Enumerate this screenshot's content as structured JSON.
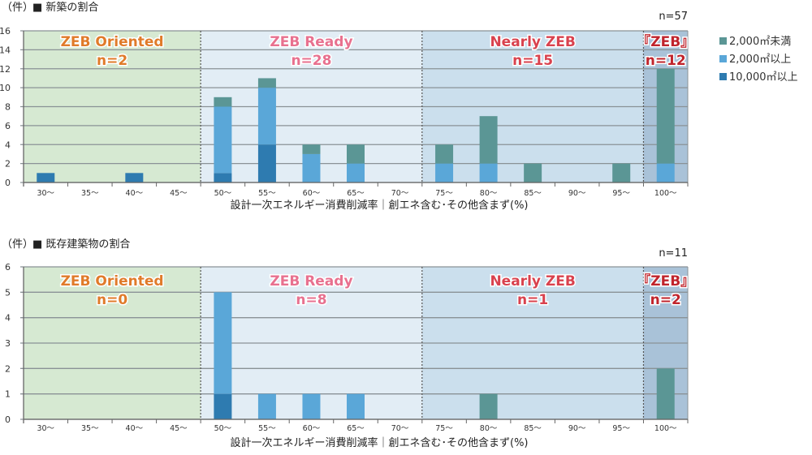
{
  "colors": {
    "small": "#5b9695",
    "mid": "#5aa7d8",
    "large": "#2e7bb0",
    "region_bg": [
      "#d6e9d2",
      "#e2edf5",
      "#cbdfed",
      "#a9c2d8"
    ],
    "region_text": [
      "#e07b2a",
      "#e8718f",
      "#d9424e",
      "#c0242c"
    ]
  },
  "legend": [
    "2,000㎡未満",
    "2,000㎡以上",
    "10,000㎡以上"
  ],
  "chart_data": [
    {
      "type": "bar",
      "stacked": true,
      "title": "■ 新築の割合",
      "ylabel": "（件）",
      "total_label": "n=57",
      "xlabel": "設計一次エネルギー消費削減率｜創エネ含む･その他含まず(%)",
      "ylim": [
        0,
        16
      ],
      "yticks": [
        0,
        2,
        4,
        6,
        8,
        10,
        12,
        14,
        16
      ],
      "grid": true,
      "legend_position": "right",
      "categories": [
        "30～",
        "35～",
        "40～",
        "45～",
        "50～",
        "55～",
        "60～",
        "65～",
        "70～",
        "75～",
        "80～",
        "85～",
        "90～",
        "95～",
        "100～"
      ],
      "series": [
        {
          "name": "10,000㎡以上",
          "values": [
            1,
            0,
            1,
            0,
            1,
            4,
            0,
            0,
            0,
            0,
            0,
            0,
            0,
            0,
            0
          ]
        },
        {
          "name": "2,000㎡以上",
          "values": [
            0,
            0,
            0,
            0,
            7,
            6,
            3,
            2,
            0,
            2,
            2,
            0,
            0,
            0,
            2
          ]
        },
        {
          "name": "2,000㎡未満",
          "values": [
            0,
            0,
            0,
            0,
            1,
            1,
            1,
            2,
            0,
            2,
            5,
            2,
            0,
            2,
            10
          ]
        }
      ],
      "regions": [
        {
          "name": "ZEB Oriented",
          "n": "n=2"
        },
        {
          "name": "ZEB Ready",
          "n": "n=28"
        },
        {
          "name": "Nearly ZEB",
          "n": "n=15"
        },
        {
          "name": "『ZEB』",
          "n": "n=12"
        }
      ]
    },
    {
      "type": "bar",
      "stacked": true,
      "title": "■ 既存建築物の割合",
      "ylabel": "（件）",
      "total_label": "n=11",
      "xlabel": "設計一次エネルギー消費削減率｜創エネ含む･その他含まず(%)",
      "ylim": [
        0,
        6
      ],
      "yticks": [
        0,
        1,
        2,
        3,
        4,
        5,
        6
      ],
      "grid": true,
      "categories": [
        "30～",
        "35～",
        "40～",
        "45～",
        "50～",
        "55～",
        "60～",
        "65～",
        "70～",
        "75～",
        "80～",
        "85～",
        "90～",
        "95～",
        "100～"
      ],
      "series": [
        {
          "name": "10,000㎡以上",
          "values": [
            0,
            0,
            0,
            0,
            1,
            0,
            0,
            0,
            0,
            0,
            0,
            0,
            0,
            0,
            0
          ]
        },
        {
          "name": "2,000㎡以上",
          "values": [
            0,
            0,
            0,
            0,
            4,
            1,
            1,
            1,
            0,
            0,
            0,
            0,
            0,
            0,
            0
          ]
        },
        {
          "name": "2,000㎡未満",
          "values": [
            0,
            0,
            0,
            0,
            0,
            0,
            0,
            0,
            0,
            0,
            1,
            0,
            0,
            0,
            2
          ]
        }
      ],
      "regions": [
        {
          "name": "ZEB Oriented",
          "n": "n=0"
        },
        {
          "name": "ZEB Ready",
          "n": "n=8"
        },
        {
          "name": "Nearly ZEB",
          "n": "n=1"
        },
        {
          "name": "『ZEB』",
          "n": "n=2"
        }
      ]
    }
  ]
}
